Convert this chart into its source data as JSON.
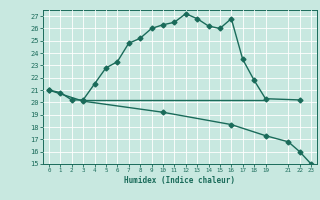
{
  "xlabel": "Humidex (Indice chaleur)",
  "bg_color": "#c8e8e0",
  "grid_color": "#ffffff",
  "line_color": "#1a6b5a",
  "ylim": [
    15,
    27.5
  ],
  "xlim": [
    -0.5,
    23.5
  ],
  "yticks": [
    15,
    16,
    17,
    18,
    19,
    20,
    21,
    22,
    23,
    24,
    25,
    26,
    27
  ],
  "xticks": [
    0,
    1,
    2,
    3,
    4,
    5,
    6,
    7,
    8,
    9,
    10,
    11,
    12,
    13,
    14,
    15,
    16,
    17,
    18,
    19,
    21,
    22,
    23
  ],
  "line1_x": [
    0,
    1,
    2,
    3,
    4,
    5,
    6,
    7,
    8,
    9,
    10,
    11,
    12,
    13,
    14,
    15,
    16,
    17,
    18,
    19,
    22
  ],
  "line1_y": [
    21.0,
    20.8,
    20.2,
    20.2,
    21.5,
    22.8,
    23.3,
    24.8,
    25.2,
    26.0,
    26.3,
    26.5,
    27.2,
    26.8,
    26.2,
    26.0,
    26.8,
    23.5,
    21.8,
    20.3,
    20.2
  ],
  "line2_x": [
    3,
    19
  ],
  "line2_y": [
    20.2,
    20.2
  ],
  "line3_x": [
    0,
    3,
    10,
    16,
    19,
    21,
    22,
    23
  ],
  "line3_y": [
    21.0,
    20.1,
    19.2,
    18.2,
    17.3,
    16.8,
    16.0,
    15.0
  ],
  "markersize": 2.5,
  "linewidth": 1.0
}
